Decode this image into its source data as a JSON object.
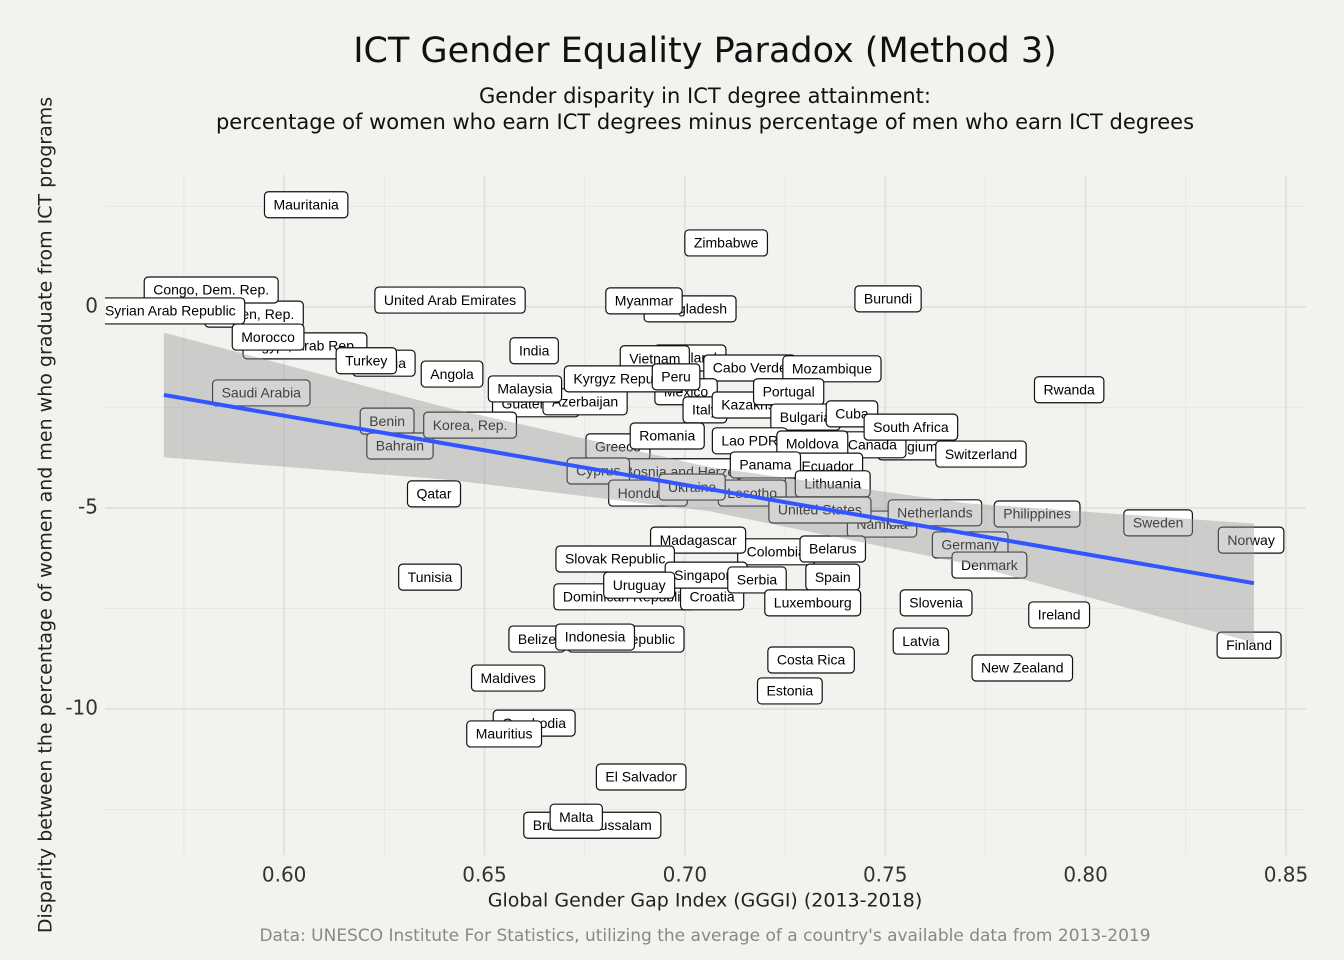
{
  "chart_data": {
    "type": "scatter",
    "title": "ICT Gender Equality Paradox (Method 3)",
    "subtitle": [
      "Gender disparity in ICT degree attainment:",
      "percentage of women who earn ICT degrees minus percentage of men who earn ICT degrees"
    ],
    "xlabel": "Global Gender Gap Index (GGGI) (2013-2018)",
    "ylabel": "Disparity between the percentage of women and men who graduate from ICT programs",
    "caption": "Data: UNESCO Institute For Statistics, utilizing the average of a country's available data from 2013-2019",
    "xlim": [
      0.5553,
      0.855
    ],
    "ylim": [
      -13.63,
      3.28
    ],
    "xticks": [
      {
        "value": 0.6,
        "label": "0.60"
      },
      {
        "value": 0.65,
        "label": "0.65"
      },
      {
        "value": 0.7,
        "label": "0.70"
      },
      {
        "value": 0.75,
        "label": "0.75"
      },
      {
        "value": 0.8,
        "label": "0.80"
      },
      {
        "value": 0.85,
        "label": "0.85"
      }
    ],
    "yticks": [
      0,
      -5,
      -10
    ],
    "grid": true,
    "fit": {
      "color": "#3355ff",
      "x": [
        0.57,
        0.842
      ],
      "y": [
        -2.19,
        -6.87
      ]
    },
    "band": {
      "x": [
        0.57,
        0.64,
        0.706,
        0.77,
        0.842
      ],
      "lower": [
        -3.74,
        -4.29,
        -5.08,
        -6.38,
        -8.35
      ],
      "upper": [
        -0.64,
        -2.49,
        -3.98,
        -4.88,
        -5.39
      ]
    },
    "points": [
      {
        "label": "Egypt, Arab Rep.",
        "x": 0.6052,
        "y": -0.97
      },
      {
        "label": "Yemen, Rep.",
        "x": 0.5925,
        "y": -0.18
      },
      {
        "label": "Congo, Dem. Rep.",
        "x": 0.5818,
        "y": 0.42
      },
      {
        "label": "Syrian Arab Republic",
        "x": 0.5716,
        "y": -0.1
      },
      {
        "label": "Morocco",
        "x": 0.596,
        "y": -0.75
      },
      {
        "label": "Mauritania",
        "x": 0.6055,
        "y": 2.54
      },
      {
        "label": "Zimbabwe",
        "x": 0.7103,
        "y": 1.59
      },
      {
        "label": "United Arab Emirates",
        "x": 0.6414,
        "y": 0.17
      },
      {
        "label": "Bangladesh",
        "x": 0.7013,
        "y": -0.05
      },
      {
        "label": "Myanmar",
        "x": 0.6898,
        "y": 0.15
      },
      {
        "label": "Burundi",
        "x": 0.7507,
        "y": 0.2
      },
      {
        "label": "India",
        "x": 0.6624,
        "y": -1.09
      },
      {
        "label": "Nigeria",
        "x": 0.6249,
        "y": -1.4
      },
      {
        "label": "Turkey",
        "x": 0.6205,
        "y": -1.34
      },
      {
        "label": "Angola",
        "x": 0.6419,
        "y": -1.67
      },
      {
        "label": "Thailand",
        "x": 0.7013,
        "y": -1.27
      },
      {
        "label": "Cabo Verde",
        "x": 0.7162,
        "y": -1.52
      },
      {
        "label": "Mozambique",
        "x": 0.7367,
        "y": -1.54
      },
      {
        "label": "Vietnam",
        "x": 0.6925,
        "y": -1.29
      },
      {
        "label": "Guatemala",
        "x": 0.6628,
        "y": -2.41
      },
      {
        "label": "Azerbaijan",
        "x": 0.6751,
        "y": -2.36
      },
      {
        "label": "Mexico",
        "x": 0.7003,
        "y": -2.11
      },
      {
        "label": "Kyrgyz Republic",
        "x": 0.6848,
        "y": -1.79
      },
      {
        "label": "Peru",
        "x": 0.6978,
        "y": -1.74
      },
      {
        "label": "Malaysia",
        "x": 0.6601,
        "y": -2.04
      },
      {
        "label": "Italy",
        "x": 0.705,
        "y": -2.56
      },
      {
        "label": "Kazakhstan",
        "x": 0.7182,
        "y": -2.44
      },
      {
        "label": "Portugal",
        "x": 0.7259,
        "y": -2.11
      },
      {
        "label": "Rwanda",
        "x": 0.7959,
        "y": -2.06
      },
      {
        "label": "Saudi Arabia",
        "x": 0.5943,
        "y": -2.14
      },
      {
        "label": "Benin",
        "x": 0.6257,
        "y": -2.84
      },
      {
        "label": "Bahrain",
        "x": 0.6289,
        "y": -3.46
      },
      {
        "label": "Korea, Rep.",
        "x": 0.6464,
        "y": -2.94
      },
      {
        "label": "Bulgaria",
        "x": 0.7301,
        "y": -2.74
      },
      {
        "label": "Cuba",
        "x": 0.7417,
        "y": -2.66
      },
      {
        "label": "Belgium",
        "x": 0.7567,
        "y": -3.48
      },
      {
        "label": "Canada",
        "x": 0.7468,
        "y": -3.43
      },
      {
        "label": "South Africa",
        "x": 0.7564,
        "y": -2.99
      },
      {
        "label": "Greece",
        "x": 0.6833,
        "y": -3.48
      },
      {
        "label": "Romania",
        "x": 0.6956,
        "y": -3.21
      },
      {
        "label": "Lao PDR",
        "x": 0.7162,
        "y": -3.33
      },
      {
        "label": "Moldova",
        "x": 0.7318,
        "y": -3.41
      },
      {
        "label": "Switzerland",
        "x": 0.7739,
        "y": -3.66
      },
      {
        "label": "Bosnia and Herzegovina",
        "x": 0.7038,
        "y": -4.1
      },
      {
        "label": "Cyprus",
        "x": 0.6784,
        "y": -4.08
      },
      {
        "label": "Ecuador",
        "x": 0.7356,
        "y": -3.96
      },
      {
        "label": "Panama",
        "x": 0.7201,
        "y": -3.93
      },
      {
        "label": "Honduras",
        "x": 0.6908,
        "y": -4.63
      },
      {
        "label": "Lesotho",
        "x": 0.7168,
        "y": -4.63
      },
      {
        "label": "Ukraine",
        "x": 0.7018,
        "y": -4.48
      },
      {
        "label": "Lithuania",
        "x": 0.7369,
        "y": -4.4
      },
      {
        "label": "Qatar",
        "x": 0.6374,
        "y": -4.65
      },
      {
        "label": "Namibia",
        "x": 0.7492,
        "y": -5.4
      },
      {
        "label": "United States",
        "x": 0.7337,
        "y": -5.05
      },
      {
        "label": "Netherlands",
        "x": 0.7624,
        "y": -5.12
      },
      {
        "label": "Philippines",
        "x": 0.7879,
        "y": -5.15
      },
      {
        "label": "Sweden",
        "x": 0.8181,
        "y": -5.37
      },
      {
        "label": "Norway",
        "x": 0.8413,
        "y": -5.8
      },
      {
        "label": "Germany",
        "x": 0.7712,
        "y": -5.92
      },
      {
        "label": "Denmark",
        "x": 0.776,
        "y": -6.42
      },
      {
        "label": "Colombia",
        "x": 0.7228,
        "y": -6.09
      },
      {
        "label": "Madagascar",
        "x": 0.7033,
        "y": -5.8
      },
      {
        "label": "Belarus",
        "x": 0.7369,
        "y": -6.02
      },
      {
        "label": "Slovak Republic",
        "x": 0.6826,
        "y": -6.27
      },
      {
        "label": "Dominican Republic",
        "x": 0.6851,
        "y": -7.21
      },
      {
        "label": "Croatia",
        "x": 0.7068,
        "y": -7.21
      },
      {
        "label": "Singapore",
        "x": 0.7053,
        "y": -6.67
      },
      {
        "label": "Uruguay",
        "x": 0.6886,
        "y": -6.92
      },
      {
        "label": "Serbia",
        "x": 0.718,
        "y": -6.79
      },
      {
        "label": "Spain",
        "x": 0.7369,
        "y": -6.72
      },
      {
        "label": "Luxembourg",
        "x": 0.7319,
        "y": -7.36
      },
      {
        "label": "Slovenia",
        "x": 0.7627,
        "y": -7.36
      },
      {
        "label": "Tunisia",
        "x": 0.6364,
        "y": -6.72
      },
      {
        "label": "Ireland",
        "x": 0.7934,
        "y": -7.66
      },
      {
        "label": "Finland",
        "x": 0.8408,
        "y": -8.41
      },
      {
        "label": "Latvia",
        "x": 0.7589,
        "y": -8.31
      },
      {
        "label": "Belize",
        "x": 0.6631,
        "y": -8.26
      },
      {
        "label": "Czech Republic",
        "x": 0.6853,
        "y": -8.26
      },
      {
        "label": "Indonesia",
        "x": 0.6776,
        "y": -8.21
      },
      {
        "label": "Costa Rica",
        "x": 0.7315,
        "y": -8.78
      },
      {
        "label": "New Zealand",
        "x": 0.7842,
        "y": -8.98
      },
      {
        "label": "Estonia",
        "x": 0.7262,
        "y": -9.55
      },
      {
        "label": "Maldives",
        "x": 0.6559,
        "y": -9.23
      },
      {
        "label": "Cambodia",
        "x": 0.6624,
        "y": -10.35
      },
      {
        "label": "Mauritius",
        "x": 0.6549,
        "y": -10.62
      },
      {
        "label": "El Salvador",
        "x": 0.6891,
        "y": -11.69
      },
      {
        "label": "Brunei Darussalam",
        "x": 0.6769,
        "y": -12.89
      },
      {
        "label": "Malta",
        "x": 0.6729,
        "y": -12.69
      }
    ]
  }
}
